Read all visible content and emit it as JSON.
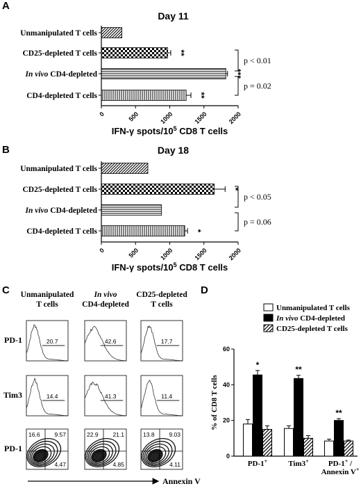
{
  "panels": {
    "a": "A",
    "b": "B",
    "c": "C",
    "d": "D"
  },
  "chart_data": [
    {
      "id": "A",
      "type": "bar",
      "orientation": "horizontal",
      "title": "Day 11",
      "xlabel_parts": [
        "IFN-γ spots/10",
        "5",
        " CD8 T cells"
      ],
      "xlim": [
        0,
        2000
      ],
      "xticks": [
        0,
        500,
        1000,
        1500,
        2000
      ],
      "categories": [
        {
          "parts": [
            [
              "Unmanipulated T cells",
              false
            ]
          ]
        },
        {
          "parts": [
            [
              "CD25-depleted T cells",
              false
            ]
          ]
        },
        {
          "parts": [
            [
              "In vivo",
              true
            ],
            [
              " CD4-depleted",
              false
            ]
          ]
        },
        {
          "parts": [
            [
              "CD4-depleted T cells",
              false
            ]
          ]
        }
      ],
      "values": [
        300,
        970,
        1820,
        1240
      ],
      "errors": [
        0,
        45,
        25,
        70
      ],
      "patterns": [
        "diag",
        "checker",
        "hlines",
        "vlines"
      ],
      "significance": [
        "",
        "**",
        "***",
        "**"
      ],
      "comparisons": [
        {
          "from": 1,
          "to": 2,
          "label": "p < 0.01"
        },
        {
          "from": 2,
          "to": 3,
          "label": "p = 0.02"
        }
      ]
    },
    {
      "id": "B",
      "type": "bar",
      "orientation": "horizontal",
      "title": "Day 18",
      "xlabel_parts": [
        "IFN-γ spots/10",
        "5",
        " CD8 T cells"
      ],
      "xlim": [
        0,
        2000
      ],
      "xticks": [
        0,
        500,
        1000,
        1500,
        2000
      ],
      "categories": [
        {
          "parts": [
            [
              "Unmanipulated T cells",
              false
            ]
          ]
        },
        {
          "parts": [
            [
              "CD25-depleted T cells",
              false
            ]
          ]
        },
        {
          "parts": [
            [
              "In vivo",
              true
            ],
            [
              " CD4-depleted",
              false
            ]
          ]
        },
        {
          "parts": [
            [
              "CD4-depleted T cells",
              false
            ]
          ]
        }
      ],
      "values": [
        680,
        1650,
        880,
        1220
      ],
      "errors": [
        0,
        160,
        0,
        40
      ],
      "patterns": [
        "diag",
        "checker",
        "hlines",
        "vlines"
      ],
      "significance": [
        "",
        "*",
        "",
        "*"
      ],
      "comparisons": [
        {
          "from": 1,
          "to": 2,
          "label": "p < 0.05"
        },
        {
          "from": 2,
          "to": 3,
          "label": "p = 0.06"
        }
      ]
    },
    {
      "id": "D",
      "type": "bar",
      "ylabel": "% of CD8 T cells",
      "ylim": [
        0,
        60
      ],
      "yticks": [
        0,
        20,
        40,
        60
      ],
      "groups": [
        {
          "lines": [
            [
              [
                "PD-1",
                false
              ],
              [
                "+",
                "sup"
              ]
            ]
          ]
        },
        {
          "lines": [
            [
              [
                "Tim3",
                false
              ],
              [
                "+",
                "sup"
              ]
            ]
          ]
        },
        {
          "lines": [
            [
              [
                "PD-1",
                false
              ],
              [
                "+",
                "sup"
              ],
              [
                " /",
                false
              ]
            ],
            [
              [
                "Annexin V",
                false
              ],
              [
                "+",
                "sup"
              ]
            ]
          ]
        }
      ],
      "series": [
        {
          "name_parts": [
            [
              "Unmanipulated T cells",
              false
            ]
          ],
          "values": [
            18,
            15.5,
            8.5
          ],
          "errors": [
            2.5,
            1.5,
            1
          ],
          "fill": "white"
        },
        {
          "name_parts": [
            [
              "In vivo",
              true
            ],
            [
              " CD4-depleted",
              false
            ]
          ],
          "values": [
            45.5,
            43.5,
            20
          ],
          "errors": [
            2.5,
            1.8,
            1
          ],
          "fill": "black"
        },
        {
          "name_parts": [
            [
              "CD25-depleted T cells",
              false
            ]
          ],
          "values": [
            15,
            10,
            8.5
          ],
          "errors": [
            2,
            1.5,
            0.5
          ],
          "fill": "hatch"
        }
      ],
      "significance": [
        "*",
        "**",
        "**"
      ]
    }
  ],
  "flow": {
    "columns": [
      {
        "lines": [
          [
            [
              "Unmanipulated",
              false
            ]
          ],
          [
            [
              "T cells",
              false
            ]
          ]
        ]
      },
      {
        "lines": [
          [
            [
              "In vivo",
              true
            ]
          ],
          [
            [
              "CD4-depleted",
              false
            ]
          ]
        ]
      },
      {
        "lines": [
          [
            [
              "CD25-depleted",
              false
            ]
          ],
          [
            [
              "T cells",
              false
            ]
          ]
        ]
      }
    ],
    "rows": [
      {
        "parts": [
          [
            "PD-1",
            false
          ]
        ]
      },
      {
        "parts": [
          [
            "Tim3",
            false
          ]
        ]
      },
      {
        "parts": [
          [
            "PD-1",
            false
          ]
        ]
      }
    ],
    "histograms": [
      [
        "20.7",
        "42.6",
        "17.7"
      ],
      [
        "14.4",
        "41.3",
        "11.4"
      ]
    ],
    "quadrants": [
      {
        "ul": "16.6",
        "ur": "9.57",
        "lr": "4.47"
      },
      {
        "ul": "22.9",
        "ur": "21.1",
        "lr": "4.85"
      },
      {
        "ul": "13.8",
        "ur": "9.03",
        "lr": "4.11"
      }
    ],
    "x_axis_label": "Annexin V"
  }
}
